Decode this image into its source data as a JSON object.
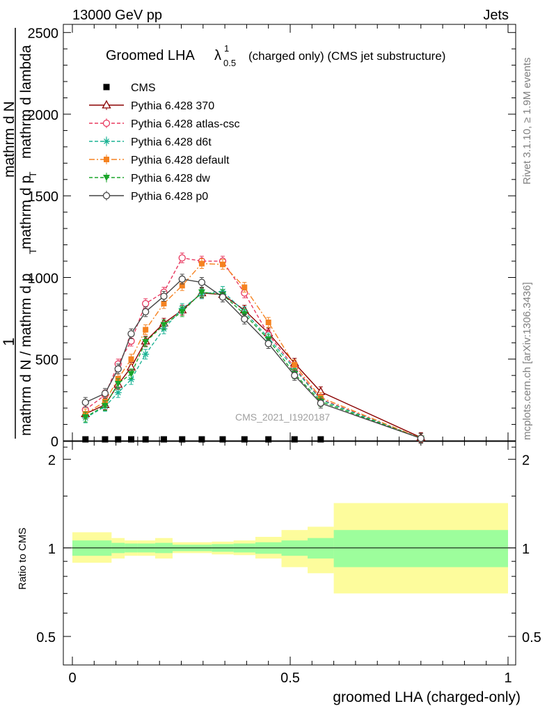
{
  "header": {
    "left": "13000 GeV pp",
    "right": "Jets"
  },
  "side_labels": {
    "rivet": "Rivet 3.1.10, ≥ 1.9M events",
    "mcplots": "mcplots.cern.ch [arXiv:1306.3436]"
  },
  "chart_data": [
    {
      "type": "line",
      "title_main": "Groomed LHA",
      "title_symbol": "λ",
      "title_sup": "1",
      "title_sub": "0.5",
      "title_rest": "(charged only) (CMS jet substructure)",
      "ylabel_numerator": "1",
      "ylabel_den1": "mathrm d N / mathrm d p",
      "ylabel_den2": "mathrm d N",
      "ylabel_den3": "mathrm d p",
      "ylabel_den4": "mathrm d lambda",
      "ylabel_sub": "T",
      "ylabel_mid": "mathrm d p",
      "ylabel_mid2": "mathrm d lambda",
      "watermark": "CMS_2021_I1920187",
      "xlim": [
        0,
        1
      ],
      "ylim": [
        0,
        2550
      ],
      "yticks": [
        0,
        500,
        1000,
        1500,
        2000,
        2500
      ],
      "ytick_labels": [
        "0",
        "500",
        "1000",
        "1500",
        "2000",
        "2500"
      ],
      "legend": [
        {
          "name": "CMS",
          "color": "#000000",
          "marker": "square",
          "dash": "none"
        },
        {
          "name": "Pythia 6.428 370",
          "color": "#8b0000",
          "marker": "triangle-open",
          "dash": "solid"
        },
        {
          "name": "Pythia 6.428 atlas-csc",
          "color": "#e8385f",
          "marker": "circle-open",
          "dash": "dashed"
        },
        {
          "name": "Pythia 6.428 d6t",
          "color": "#19b293",
          "marker": "star",
          "dash": "dashed"
        },
        {
          "name": "Pythia 6.428 default",
          "color": "#f58220",
          "marker": "square-filled",
          "dash": "dashdot"
        },
        {
          "name": "Pythia 6.428 dw",
          "color": "#1aa52a",
          "marker": "triangle-down",
          "dash": "dashed"
        },
        {
          "name": "Pythia 6.428 p0",
          "color": "#444444",
          "marker": "circle-open",
          "dash": "solid"
        }
      ],
      "x": [
        0.03,
        0.075,
        0.105,
        0.135,
        0.168,
        0.21,
        0.252,
        0.297,
        0.345,
        0.395,
        0.45,
        0.51,
        0.57,
        0.8
      ],
      "cms_points_x": [
        0.03,
        0.075,
        0.105,
        0.135,
        0.168,
        0.21,
        0.252,
        0.297,
        0.345,
        0.395,
        0.45,
        0.51,
        0.57
      ],
      "cms_points_y": [
        0,
        0,
        0,
        0,
        0,
        0,
        0,
        0,
        0,
        0,
        0,
        0,
        0
      ],
      "series": [
        {
          "name": "Pythia 6.428 370",
          "values": [
            165,
            220,
            345,
            450,
            610,
            720,
            800,
            905,
            895,
            800,
            660,
            475,
            300,
            20
          ]
        },
        {
          "name": "Pythia 6.428 atlas-csc",
          "values": [
            190,
            280,
            470,
            610,
            840,
            910,
            1120,
            1100,
            1100,
            905,
            650,
            450,
            255,
            15
          ]
        },
        {
          "name": "Pythia 6.428 d6t",
          "values": [
            140,
            210,
            295,
            375,
            530,
            685,
            810,
            900,
            915,
            790,
            630,
            440,
            250,
            15
          ]
        },
        {
          "name": "Pythia 6.428 default",
          "values": [
            165,
            240,
            380,
            500,
            680,
            840,
            950,
            1085,
            1080,
            940,
            725,
            465,
            265,
            15
          ]
        },
        {
          "name": "Pythia 6.428 dw",
          "values": [
            145,
            215,
            350,
            410,
            605,
            710,
            790,
            910,
            895,
            775,
            620,
            410,
            240,
            15
          ]
        },
        {
          "name": "Pythia 6.428 p0",
          "values": [
            235,
            290,
            440,
            655,
            790,
            885,
            990,
            970,
            880,
            745,
            595,
            400,
            230,
            15
          ]
        }
      ]
    },
    {
      "type": "area",
      "ylabel": "Ratio to CMS",
      "xlabel": "groomed LHA (charged-only)",
      "xlim": [
        0,
        1
      ],
      "ylim": [
        0.4,
        2.3
      ],
      "log_y": true,
      "yticks": [
        0.5,
        1,
        2
      ],
      "ytick_labels": [
        "0.5",
        "1",
        "2"
      ],
      "xticks": [
        0,
        0.5,
        1
      ],
      "xtick_labels": [
        "0",
        "0.5",
        "1"
      ],
      "band_colors": {
        "inner": "#9dfe9c",
        "outer": "#fdfc9c"
      },
      "bins": [
        {
          "x0": 0.0,
          "x1": 0.09,
          "inner": [
            0.94,
            1.06
          ],
          "outer": [
            0.89,
            1.13
          ]
        },
        {
          "x0": 0.09,
          "x1": 0.12,
          "inner": [
            0.96,
            1.04
          ],
          "outer": [
            0.92,
            1.08
          ]
        },
        {
          "x0": 0.12,
          "x1": 0.15,
          "inner": [
            0.965,
            1.035
          ],
          "outer": [
            0.94,
            1.06
          ]
        },
        {
          "x0": 0.15,
          "x1": 0.19,
          "inner": [
            0.965,
            1.035
          ],
          "outer": [
            0.94,
            1.06
          ]
        },
        {
          "x0": 0.19,
          "x1": 0.23,
          "inner": [
            0.96,
            1.04
          ],
          "outer": [
            0.92,
            1.08
          ]
        },
        {
          "x0": 0.23,
          "x1": 0.27,
          "inner": [
            0.975,
            1.025
          ],
          "outer": [
            0.96,
            1.045
          ]
        },
        {
          "x0": 0.27,
          "x1": 0.32,
          "inner": [
            0.975,
            1.025
          ],
          "outer": [
            0.96,
            1.045
          ]
        },
        {
          "x0": 0.32,
          "x1": 0.37,
          "inner": [
            0.97,
            1.03
          ],
          "outer": [
            0.95,
            1.05
          ]
        },
        {
          "x0": 0.37,
          "x1": 0.42,
          "inner": [
            0.965,
            1.035
          ],
          "outer": [
            0.945,
            1.06
          ]
        },
        {
          "x0": 0.42,
          "x1": 0.48,
          "inner": [
            0.955,
            1.045
          ],
          "outer": [
            0.92,
            1.09
          ]
        },
        {
          "x0": 0.48,
          "x1": 0.54,
          "inner": [
            0.94,
            1.06
          ],
          "outer": [
            0.86,
            1.15
          ]
        },
        {
          "x0": 0.54,
          "x1": 0.6,
          "inner": [
            0.92,
            1.08
          ],
          "outer": [
            0.82,
            1.18
          ]
        },
        {
          "x0": 0.6,
          "x1": 1.0,
          "inner": [
            0.86,
            1.15
          ],
          "outer": [
            0.7,
            1.42
          ]
        }
      ]
    }
  ]
}
